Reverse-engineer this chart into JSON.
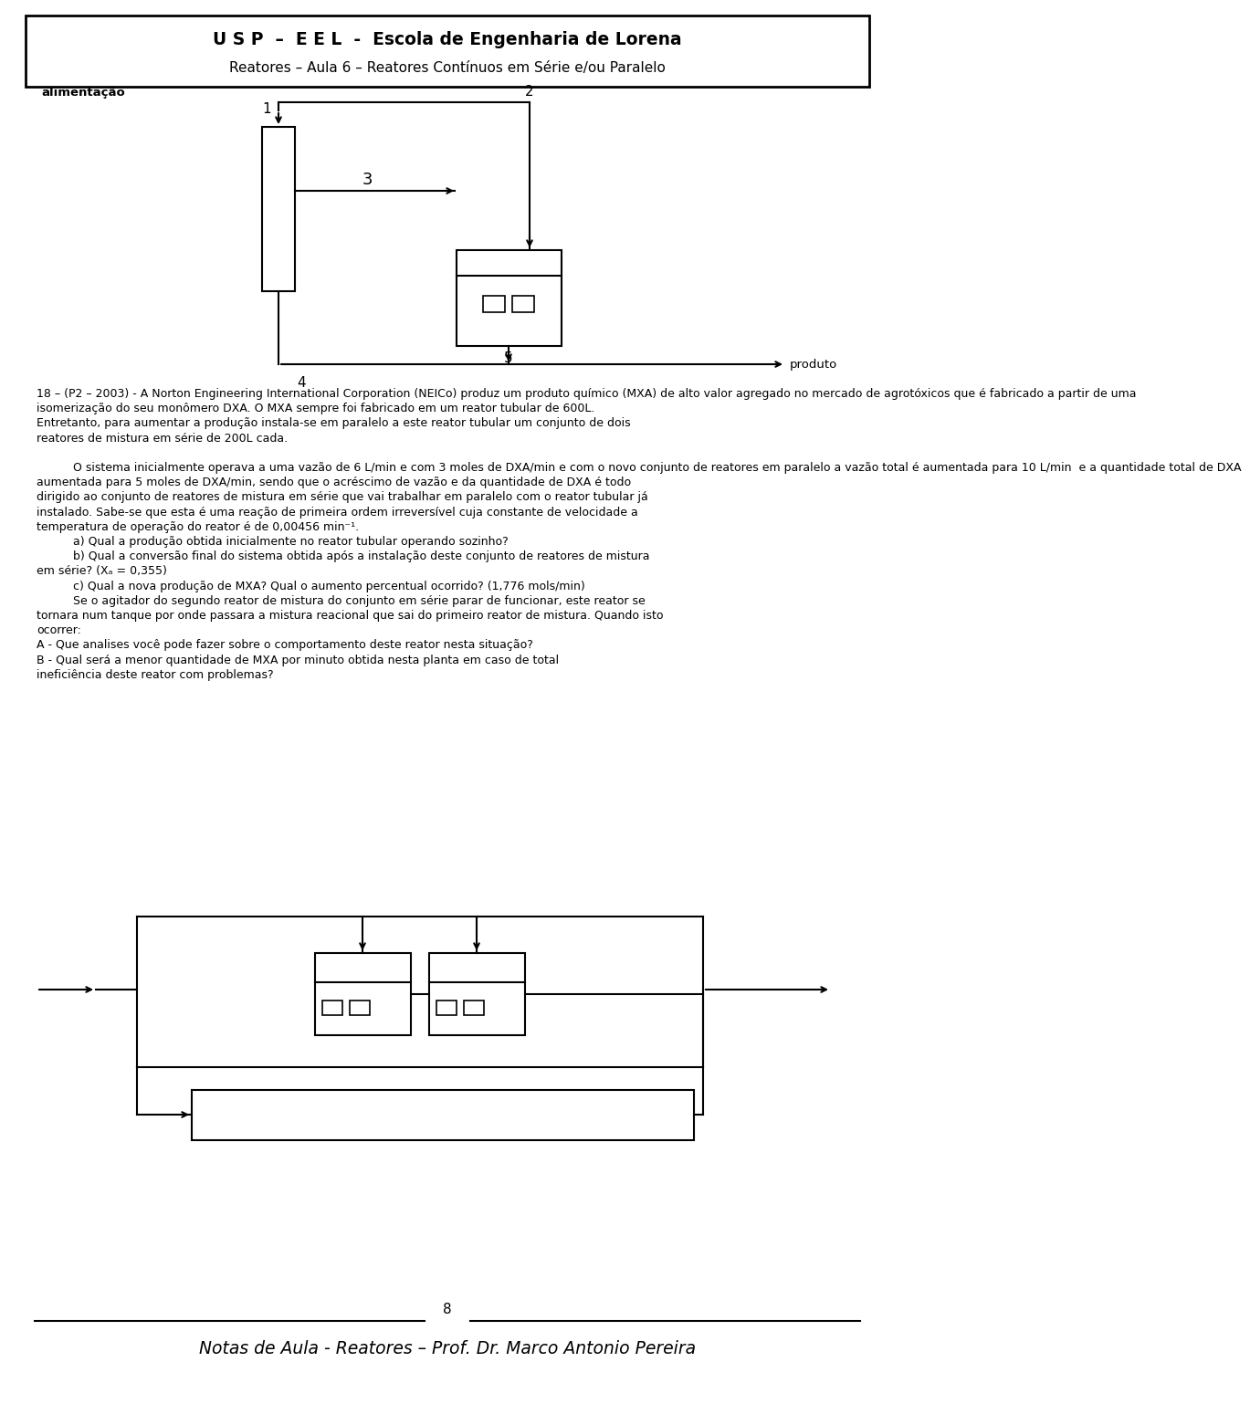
{
  "header_line1": "U S P  –  E E L  -  Escola de Engenharia de Lorena",
  "header_line2": "Reatores – Aula 6 – Reatores Contínuos em Série e/ou Paralelo",
  "footer_page": "8",
  "footer_text": "Notas de Aula - Reatores – Prof. Dr. Marco Antonio Pereira",
  "bg_color": "#ffffff",
  "text_color": "#000000",
  "body_lines": [
    "18 – (P2 – 2003) - A Norton Engineering International Corporation (NEICo) produz um produto químico (MXA) de alto valor agregado no mercado de agrotóxicos que é fabricado a partir de uma",
    "isomerização do seu monômero DXA. O MXA sempre foi fabricado em um reator tubular de 600L.",
    "Entretanto, para aumentar a produção instala-se em paralelo a este reator tubular um conjunto de dois",
    "reatores de mistura em série de 200L cada.",
    "",
    "indent|O sistema inicialmente operava a uma vazão de 6 L/min e com 3 moles de DXA/min e com o novo conjunto de reatores em paralelo a vazão total é aumentada para 10 L/min  e a quantidade total de DXA",
    "aumentada para 5 moles de DXA/min, sendo que o acréscimo de vazão e da quantidade de DXA é todo",
    "dirigido ao conjunto de reatores de mistura em série que vai trabalhar em paralelo com o reator tubular já",
    "instalado. Sabe-se que esta é uma reação de primeira ordem irreversível cuja constante de velocidade a",
    "temperatura de operação do reator é de 0,00456 min⁻¹.",
    "indent|a) Qual a produção obtida inicialmente no reator tubular operando sozinho?",
    "indent|b) Qual a conversão final do sistema obtida após a instalação deste conjunto de reatores de mistura",
    "em série? (Xₐ = 0,355)",
    "indent|c) Qual a nova produção de MXA? Qual o aumento percentual ocorrido? (1,776 mols/min)",
    "indent|Se o agitador do segundo reator de mistura do conjunto em série parar de funcionar, este reator se",
    "tornara num tanque por onde passara a mistura reacional que sai do primeiro reator de mistura. Quando isto",
    "ocorrer:",
    "A - Que analises você pode fazer sobre o comportamento deste reator nesta situação?",
    "B - Qual será a menor quantidade de MXA por minuto obtida nesta planta em caso de total",
    "ineficiência deste reator com problemas?"
  ]
}
